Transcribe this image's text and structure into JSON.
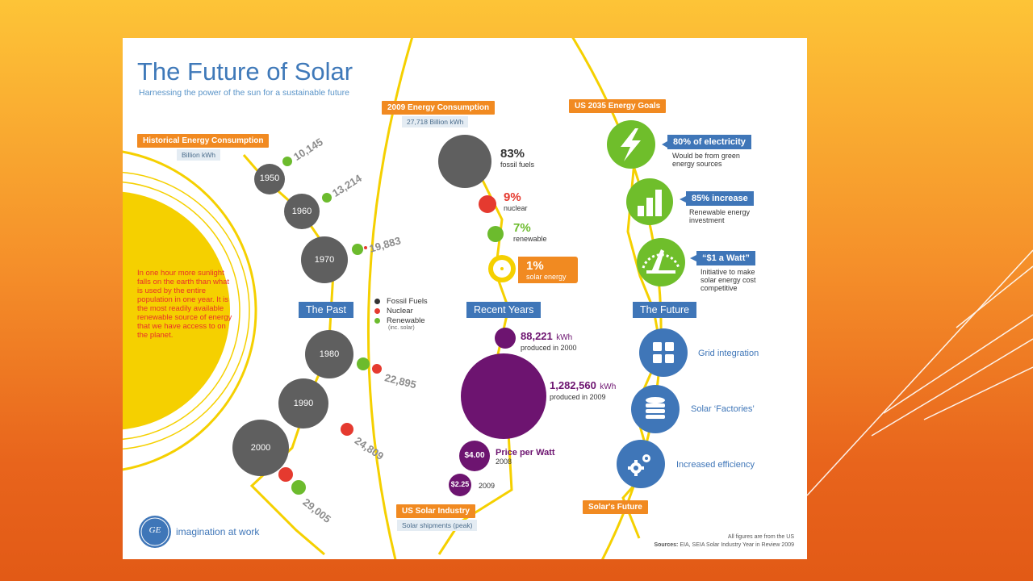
{
  "infographic": {
    "title": "The Future of Solar",
    "subtitle": "Harnessing the power of the sun for a sustainable future",
    "sun_text": "In one hour more sunlight falls on the earth than what is used by the entire population in one year. It is the most readily available renewable source of energy that we have access to on the planet.",
    "logo_text": "imagination at work",
    "logo_mark": "GE"
  },
  "past": {
    "header": "Historical Energy Consumption",
    "unit": "Billion kWh",
    "section": "The Past",
    "decades": [
      {
        "year": "1950",
        "value": "10,145"
      },
      {
        "year": "1960",
        "value": "13,214"
      },
      {
        "year": "1970",
        "value": "19,883"
      },
      {
        "year": "1980",
        "value": "22,895"
      },
      {
        "year": "1990",
        "value": "24,809"
      },
      {
        "year": "2000",
        "value": "29,005"
      }
    ],
    "legend": {
      "fossil": "Fossil Fuels",
      "nuclear": "Nuclear",
      "renewable": "Renewable",
      "renewable_note": "(inc. solar)"
    }
  },
  "recent": {
    "header": "2009 Energy Consumption",
    "total": "27,718 Billion kWh",
    "fossil_pct": "83%",
    "fossil_label": "fossil fuels",
    "nuclear_pct": "9%",
    "nuclear_label": "nuclear",
    "renewable_pct": "7%",
    "renewable_label": "renewable",
    "solar_pct": "1%",
    "solar_label": "solar energy",
    "section": "Recent Years",
    "prod2000_value": "88,221",
    "prod2000_unit": "kWh",
    "prod2000_label": "produced in 2000",
    "prod2009_value": "1,282,560",
    "prod2009_unit": "kWh",
    "prod2009_label": "produced in 2009",
    "price2008": "$4.00",
    "price_title": "Price per Watt",
    "price2008_year": "2008",
    "price2009": "$2.25",
    "price2009_year": "2009",
    "footer": "US Solar Industry",
    "footer_sub": "Solar shipments (peak)"
  },
  "future": {
    "header": "US 2035 Energy Goals",
    "goal1_title": "80% of electricity",
    "goal1_l1": "Would be from green",
    "goal1_l2": "energy sources",
    "goal2_title": "85% increase",
    "goal2_l1": "Renewable energy",
    "goal2_l2": "investment",
    "goal3_title": "“$1 a Watt”",
    "goal3_l1": "Initiative to make",
    "goal3_l2": "solar energy cost",
    "goal3_l3": "competitive",
    "section": "The Future",
    "item1": "Grid integration",
    "item2": "Solar ‘Factories’",
    "item3": "Increased efficiency",
    "footer": "Solar's Future",
    "note": "All figures are from the US",
    "sources_label": "Sources:",
    "sources": "EIA, SEIA Solar Industry Year in Review 2009"
  },
  "icons": [
    "lightning-icon",
    "bar-chart-icon",
    "gauge-icon",
    "grid-icon",
    "database-icon",
    "gears-icon"
  ],
  "colors": {
    "fossil": "#5f5f5f",
    "nuclear": "#e53a2f",
    "renewable": "#6cbb2d",
    "solar": "#f5d000",
    "purple": "#6d1470",
    "blue": "#3f76b8",
    "orange": "#f18a21",
    "green": "#6fbe2b"
  }
}
